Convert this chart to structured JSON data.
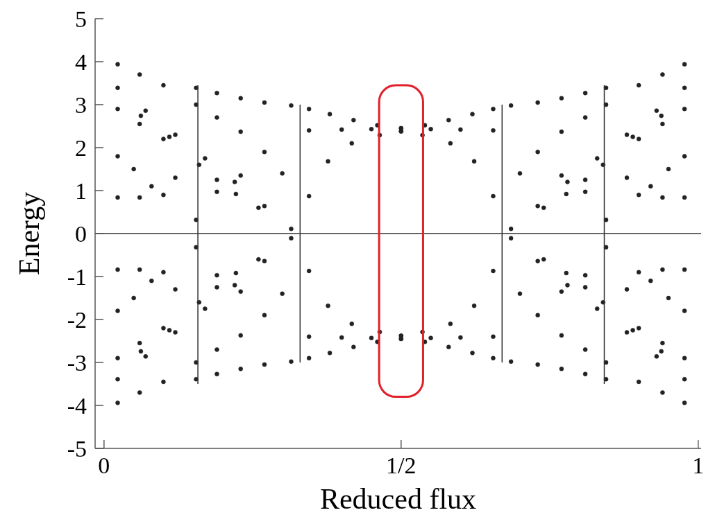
{
  "chart_data": {
    "type": "scatter",
    "xlabel": "Reduced flux",
    "ylabel": "Energy",
    "xlim": [
      -0.015,
      1.005
    ],
    "ylim": [
      -5,
      5
    ],
    "xticks": [
      0,
      {
        "value": 0.5,
        "label": "1/2"
      },
      1
    ],
    "yticks": [
      -5,
      -4,
      -3,
      -2,
      -1,
      0,
      1,
      2,
      3,
      4,
      5
    ],
    "grid": false,
    "marker": "circle",
    "ref_lines": [
      {
        "axis": "y",
        "value": 0,
        "color": "#333333"
      }
    ],
    "series": [
      {
        "color": "#222222",
        "x": [
          0.023,
          0.06,
          0.1,
          0.155,
          0.19,
          0.23,
          0.27,
          0.315,
          0.345,
          0.38,
          0.42,
          0.46,
          0.5,
          0.19,
          0.23,
          0.27,
          0.3,
          0.155,
          0.023,
          0.07,
          0.12,
          0.17,
          0.22,
          0.27,
          0.315,
          0.345,
          0.377,
          0.417,
          0.464,
          0.5,
          0.345,
          0.4,
          0.45,
          0.023,
          0.06,
          0.1,
          0.023,
          0.05,
          0.023,
          0.06,
          0.08,
          0.1,
          0.12,
          0.062,
          0.11,
          0.16,
          0.19,
          0.222,
          0.26,
          0.155,
          0.19,
          0.23,
          0.977,
          0.94,
          0.9,
          0.845,
          0.81,
          0.77,
          0.73,
          0.685,
          0.655,
          0.62,
          0.58,
          0.54,
          0.5,
          0.81,
          0.77,
          0.73,
          0.7,
          0.845,
          0.977,
          0.93,
          0.88,
          0.83,
          0.78,
          0.73,
          0.685,
          0.655,
          0.623,
          0.583,
          0.536,
          0.5,
          0.655,
          0.6,
          0.55,
          0.977,
          0.94,
          0.9,
          0.977,
          0.95,
          0.977,
          0.94,
          0.92,
          0.9,
          0.88,
          0.938,
          0.89,
          0.84,
          0.81,
          0.778,
          0.74,
          0.845,
          0.81,
          0.77,
          0.023,
          0.06,
          0.1,
          0.155,
          0.19,
          0.23,
          0.27,
          0.315,
          0.345,
          0.38,
          0.42,
          0.46,
          0.5,
          0.19,
          0.23,
          0.27,
          0.3,
          0.155,
          0.023,
          0.07,
          0.12,
          0.17,
          0.22,
          0.27,
          0.315,
          0.345,
          0.377,
          0.417,
          0.464,
          0.5,
          0.345,
          0.4,
          0.45,
          0.023,
          0.06,
          0.1,
          0.023,
          0.05,
          0.023,
          0.06,
          0.08,
          0.1,
          0.12,
          0.062,
          0.11,
          0.16,
          0.19,
          0.222,
          0.26,
          0.155,
          0.19,
          0.23,
          0.977,
          0.94,
          0.9,
          0.845,
          0.81,
          0.77,
          0.73,
          0.685,
          0.655,
          0.62,
          0.58,
          0.54,
          0.5,
          0.81,
          0.77,
          0.73,
          0.7,
          0.845,
          0.977,
          0.93,
          0.88,
          0.83,
          0.78,
          0.73,
          0.685,
          0.655,
          0.623,
          0.583,
          0.536,
          0.5,
          0.655,
          0.6,
          0.55,
          0.977,
          0.94,
          0.9,
          0.977,
          0.95,
          0.977,
          0.94,
          0.92,
          0.9,
          0.88,
          0.938,
          0.89,
          0.84,
          0.81,
          0.778,
          0.74,
          0.845,
          0.81,
          0.77
        ],
        "values": [
          3.94,
          3.7,
          3.45,
          3.39,
          3.27,
          3.15,
          3.05,
          2.98,
          2.9,
          2.78,
          2.64,
          2.52,
          2.45,
          2.7,
          2.37,
          1.9,
          1.4,
          3.0,
          3.39,
          2.86,
          2.3,
          1.75,
          1.2,
          0.64,
          0.11,
          0.87,
          1.68,
          2.1,
          2.29,
          2.38,
          2.4,
          2.42,
          2.43,
          2.9,
          2.55,
          2.2,
          1.8,
          1.5,
          0.84,
          0.84,
          1.1,
          0.9,
          1.3,
          2.74,
          2.25,
          1.6,
          1.25,
          0.92,
          0.6,
          0.32,
          0.97,
          1.35,
          3.94,
          3.7,
          3.45,
          3.39,
          3.27,
          3.15,
          3.05,
          2.98,
          2.9,
          2.78,
          2.64,
          2.52,
          2.45,
          2.7,
          2.37,
          1.9,
          1.4,
          3.0,
          3.39,
          2.86,
          2.3,
          1.75,
          1.2,
          0.64,
          0.11,
          0.87,
          1.68,
          2.1,
          2.29,
          2.38,
          2.4,
          2.42,
          2.43,
          2.9,
          2.55,
          2.2,
          1.8,
          1.5,
          0.84,
          0.84,
          1.1,
          0.9,
          1.3,
          2.74,
          2.25,
          1.6,
          1.25,
          0.92,
          0.6,
          0.32,
          0.97,
          1.35,
          -3.94,
          -3.7,
          -3.45,
          -3.39,
          -3.27,
          -3.15,
          -3.05,
          -2.98,
          -2.9,
          -2.78,
          -2.64,
          -2.52,
          -2.45,
          -2.7,
          -2.37,
          -1.9,
          -1.4,
          -3.0,
          -3.39,
          -2.86,
          -2.3,
          -1.75,
          -1.2,
          -0.64,
          -0.11,
          -0.87,
          -1.68,
          -2.1,
          -2.29,
          -2.38,
          -2.4,
          -2.42,
          -2.43,
          -2.9,
          -2.55,
          -2.2,
          -1.8,
          -1.5,
          -0.84,
          -0.84,
          -1.1,
          -0.9,
          -1.3,
          -2.74,
          -2.25,
          -1.6,
          -1.25,
          -0.92,
          -0.6,
          -0.32,
          -0.97,
          -1.35,
          -3.94,
          -3.7,
          -3.45,
          -3.39,
          -3.27,
          -3.15,
          -3.05,
          -2.98,
          -2.9,
          -2.78,
          -2.64,
          -2.52,
          -2.45,
          -2.7,
          -2.37,
          -1.9,
          -1.4,
          -3.0,
          -3.39,
          -2.86,
          -2.3,
          -1.75,
          -1.2,
          -0.64,
          -0.11,
          -0.87,
          -1.68,
          -2.1,
          -2.29,
          -2.38,
          -2.4,
          -2.42,
          -2.43,
          -2.9,
          -2.55,
          -2.2,
          -1.8,
          -1.5,
          -0.84,
          -0.84,
          -1.1,
          -0.9,
          -1.3,
          -2.74,
          -2.25,
          -1.6,
          -1.25,
          -0.92,
          -0.6,
          -0.32,
          -0.97,
          -1.35
        ]
      },
      {
        "type": "line",
        "marker": "none",
        "color": "#333333",
        "x": [
          0.158,
          0.158
        ],
        "values": [
          -3.5,
          3.45
        ]
      },
      {
        "type": "line",
        "marker": "none",
        "color": "#333333",
        "x": [
          0.33,
          0.33
        ],
        "values": [
          -3.0,
          3.0
        ]
      },
      {
        "type": "line",
        "marker": "none",
        "color": "#333333",
        "x": [
          0.67,
          0.67
        ],
        "values": [
          -3.0,
          3.0
        ]
      },
      {
        "type": "line",
        "marker": "none",
        "color": "#333333",
        "x": [
          0.842,
          0.842
        ],
        "values": [
          -3.5,
          3.45
        ]
      }
    ]
  }
}
